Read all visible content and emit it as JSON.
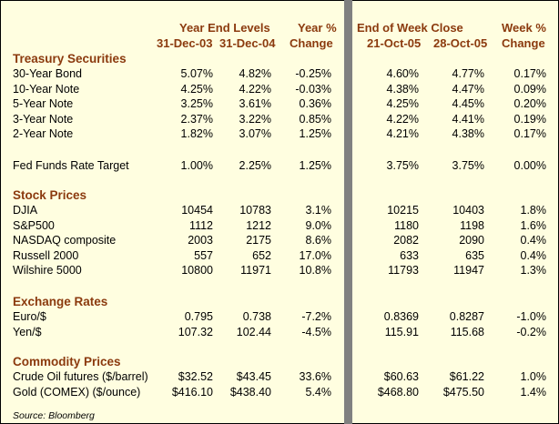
{
  "header": {
    "year_end_title": "Year End Levels",
    "year_end_date1": "31-Dec-03",
    "year_end_date2": "31-Dec-04",
    "year_change_l1": "Year %",
    "year_change_l2": "Change",
    "week_title": "End of Week Close",
    "week_date1": "21-Oct-05",
    "week_date2": "28-Oct-05",
    "week_change_l1": "Week %",
    "week_change_l2": "Change"
  },
  "sections": [
    {
      "title": "Treasury Securities",
      "rows": [
        {
          "label": "30-Year Bond",
          "v1": "5.07%",
          "v2": "4.82%",
          "yc": "-0.25%",
          "w1": "4.60%",
          "w2": "4.77%",
          "wc": "0.17%"
        },
        {
          "label": "10-Year Note",
          "v1": "4.25%",
          "v2": "4.22%",
          "yc": "-0.03%",
          "w1": "4.38%",
          "w2": "4.47%",
          "wc": "0.09%"
        },
        {
          "label": "5-Year Note",
          "v1": "3.25%",
          "v2": "3.61%",
          "yc": "0.36%",
          "w1": "4.25%",
          "w2": "4.45%",
          "wc": "0.20%"
        },
        {
          "label": "3-Year Note",
          "v1": "2.37%",
          "v2": "3.22%",
          "yc": "0.85%",
          "w1": "4.22%",
          "w2": "4.41%",
          "wc": "0.19%"
        },
        {
          "label": "2-Year Note",
          "v1": "1.82%",
          "v2": "3.07%",
          "yc": "1.25%",
          "w1": "4.21%",
          "w2": "4.38%",
          "wc": "0.17%"
        }
      ],
      "extra": {
        "label": "Fed Funds Rate Target",
        "v1": "1.00%",
        "v2": "2.25%",
        "yc": "1.25%",
        "w1": "3.75%",
        "w2": "3.75%",
        "wc": "0.00%"
      }
    },
    {
      "title": "Stock Prices",
      "rows": [
        {
          "label": "DJIA",
          "v1": "10454",
          "v2": "10783",
          "yc": "3.1%",
          "w1": "10215",
          "w2": "10403",
          "wc": "1.8%"
        },
        {
          "label": "S&P500",
          "v1": "1112",
          "v2": "1212",
          "yc": "9.0%",
          "w1": "1180",
          "w2": "1198",
          "wc": "1.6%"
        },
        {
          "label": "NASDAQ composite",
          "v1": "2003",
          "v2": "2175",
          "yc": "8.6%",
          "w1": "2082",
          "w2": "2090",
          "wc": "0.4%"
        },
        {
          "label": "Russell 2000",
          "v1": "557",
          "v2": "652",
          "yc": "17.0%",
          "w1": "633",
          "w2": "635",
          "wc": "0.4%"
        },
        {
          "label": "Wilshire 5000",
          "v1": "10800",
          "v2": "11971",
          "yc": "10.8%",
          "w1": "11793",
          "w2": "11947",
          "wc": "1.3%"
        }
      ]
    },
    {
      "title": "Exchange Rates",
      "rows": [
        {
          "label": "Euro/$",
          "v1": "0.795",
          "v2": "0.738",
          "yc": "-7.2%",
          "w1": "0.8369",
          "w2": "0.8287",
          "wc": "-1.0%"
        },
        {
          "label": "Yen/$",
          "v1": "107.32",
          "v2": "102.44",
          "yc": "-4.5%",
          "w1": "115.91",
          "w2": "115.68",
          "wc": "-0.2%"
        }
      ]
    },
    {
      "title": "Commodity Prices",
      "rows": [
        {
          "label": "Crude Oil futures ($/barrel)",
          "v1": "$32.52",
          "v2": "$43.45",
          "yc": "33.6%",
          "w1": "$60.63",
          "w2": "$61.22",
          "wc": "1.0%"
        },
        {
          "label": "Gold (COMEX) ($/ounce)",
          "v1": "$416.10",
          "v2": "$438.40",
          "yc": "5.4%",
          "w1": "$468.80",
          "w2": "$475.50",
          "wc": "1.4%"
        }
      ]
    }
  ],
  "source": "Source: Bloomberg",
  "colors": {
    "background": "#fffee0",
    "header_text": "#8b3a0e",
    "divider": "#808080"
  }
}
